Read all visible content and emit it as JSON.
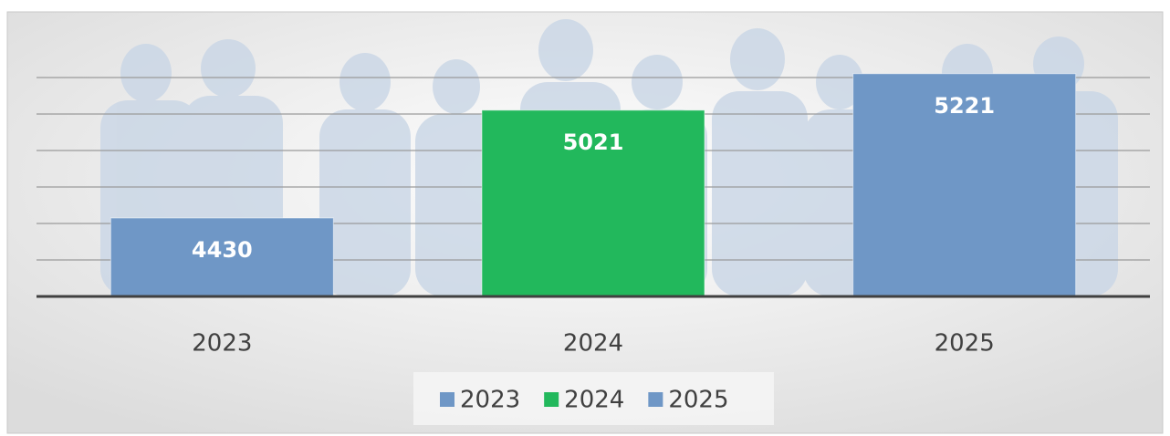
{
  "chart_data": {
    "type": "bar",
    "categories": [
      "2023",
      "2024",
      "2025"
    ],
    "values": [
      4430,
      5021,
      5221
    ],
    "colors": [
      "#6f97c6",
      "#22b85c",
      "#6f97c6"
    ],
    "ylim": [
      4000,
      5400
    ],
    "yticks": [
      4200,
      4400,
      4600,
      4800,
      5000,
      5200
    ],
    "grid": true,
    "legend": "bottom"
  }
}
